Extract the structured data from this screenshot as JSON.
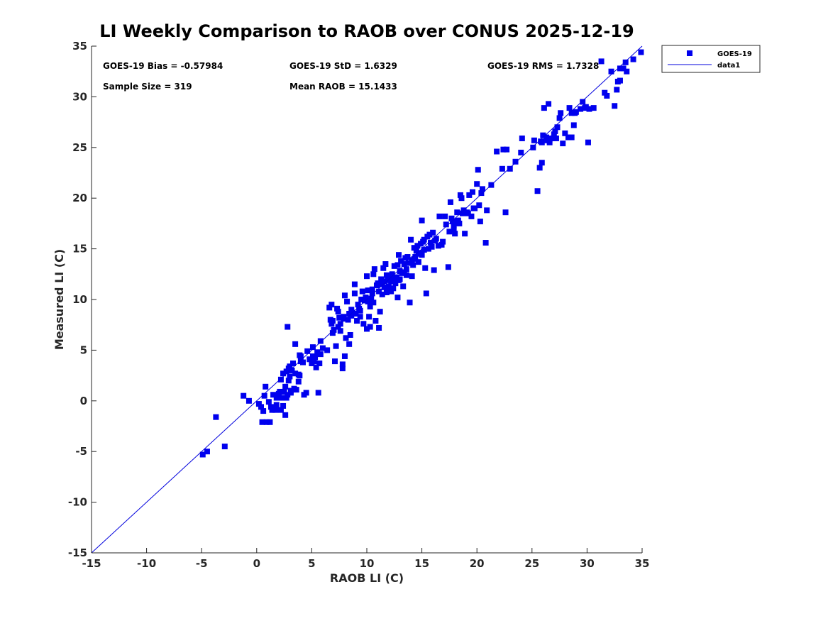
{
  "chart_data": {
    "type": "scatter",
    "title": "LI Weekly Comparison to RAOB over CONUS 2025-12-19",
    "xlabel": "RAOB LI (C)",
    "ylabel": "Measured LI (C)",
    "xlim": [
      -15,
      35
    ],
    "ylim": [
      -15,
      35
    ],
    "xticks": [
      "-15",
      "-10",
      "-5",
      "0",
      "5",
      "10",
      "15",
      "20",
      "25",
      "30",
      "35"
    ],
    "yticks": [
      "-15",
      "-10",
      "-5",
      "0",
      "5",
      "10",
      "15",
      "20",
      "25",
      "30",
      "35"
    ],
    "marker_color": "#0000ee",
    "line_color": "#0000dd",
    "legend": {
      "placement": "outside-top-right",
      "entries": [
        "GOES-19",
        "data1"
      ]
    },
    "stats": {
      "bias": "GOES-19 Bias = -0.57984",
      "std": "GOES-19 StD = 1.6329",
      "rms": "GOES-19 RMS = 1.7328",
      "sample": "Sample Size = 319",
      "mean": "Mean RAOB = 15.1433"
    },
    "series": [
      {
        "name": "GOES-19",
        "kind": "points",
        "points": [
          [
            -4.9,
            -5.3
          ],
          [
            -4.5,
            -5.0
          ],
          [
            -3.7,
            -1.6
          ],
          [
            -2.9,
            -4.5
          ],
          [
            -1.2,
            0.5
          ],
          [
            -0.7,
            0.0
          ],
          [
            0.2,
            -0.3
          ],
          [
            0.4,
            -0.6
          ],
          [
            0.5,
            -2.1
          ],
          [
            0.9,
            -2.1
          ],
          [
            0.8,
            1.4
          ],
          [
            0.7,
            0.5
          ],
          [
            1.2,
            -2.1
          ],
          [
            1.3,
            -0.6
          ],
          [
            1.4,
            -0.9
          ],
          [
            1.5,
            0.6
          ],
          [
            1.6,
            -0.8
          ],
          [
            1.8,
            -0.4
          ],
          [
            1.8,
            0.3
          ],
          [
            2.0,
            0.7
          ],
          [
            2.2,
            -0.9
          ],
          [
            2.3,
            0.3
          ],
          [
            2.4,
            -0.5
          ],
          [
            2.5,
            0.9
          ],
          [
            2.6,
            1.4
          ],
          [
            2.7,
            0.3
          ],
          [
            2.6,
            -1.4
          ],
          [
            2.7,
            2.9
          ],
          [
            2.8,
            7.3
          ],
          [
            2.8,
            0.6
          ],
          [
            2.9,
            3.2
          ],
          [
            3.0,
            2.4
          ],
          [
            3.1,
            1.0
          ],
          [
            3.1,
            0.8
          ],
          [
            3.3,
            3.7
          ],
          [
            3.4,
            1.2
          ],
          [
            3.5,
            5.6
          ],
          [
            3.5,
            2.7
          ],
          [
            3.6,
            1.1
          ],
          [
            3.8,
            2.6
          ],
          [
            3.8,
            1.9
          ],
          [
            3.9,
            4.5
          ],
          [
            4.0,
            3.9
          ],
          [
            4.2,
            3.8
          ],
          [
            4.3,
            0.6
          ],
          [
            4.5,
            0.8
          ],
          [
            4.8,
            4.1
          ],
          [
            5.0,
            3.7
          ],
          [
            5.1,
            5.3
          ],
          [
            5.2,
            3.9
          ],
          [
            5.3,
            4.3
          ],
          [
            5.4,
            3.3
          ],
          [
            5.5,
            4.8
          ],
          [
            5.6,
            0.8
          ],
          [
            5.7,
            3.7
          ],
          [
            5.8,
            4.6
          ],
          [
            6.4,
            5.0
          ],
          [
            6.6,
            9.2
          ],
          [
            6.7,
            8.0
          ],
          [
            6.8,
            7.6
          ],
          [
            6.9,
            6.7
          ],
          [
            7.0,
            7.0
          ],
          [
            7.1,
            3.9
          ],
          [
            7.2,
            5.4
          ],
          [
            7.3,
            9.1
          ],
          [
            7.4,
            7.3
          ],
          [
            7.5,
            8.2
          ],
          [
            7.6,
            6.9
          ],
          [
            7.8,
            3.2
          ],
          [
            7.8,
            3.6
          ],
          [
            7.9,
            8.3
          ],
          [
            8.0,
            4.4
          ],
          [
            8.1,
            6.2
          ],
          [
            8.2,
            9.8
          ],
          [
            8.3,
            8.0
          ],
          [
            8.4,
            5.6
          ],
          [
            8.5,
            6.5
          ],
          [
            8.6,
            8.4
          ],
          [
            8.7,
            8.7
          ],
          [
            8.9,
            11.5
          ],
          [
            9.0,
            8.6
          ],
          [
            9.1,
            7.9
          ],
          [
            9.3,
            9.1
          ],
          [
            9.4,
            8.9
          ],
          [
            9.5,
            10.0
          ],
          [
            9.7,
            7.6
          ],
          [
            9.8,
            9.9
          ],
          [
            10.0,
            7.1
          ],
          [
            10.0,
            12.3
          ],
          [
            10.1,
            10.9
          ],
          [
            10.2,
            8.3
          ],
          [
            10.3,
            7.3
          ],
          [
            10.4,
            10.1
          ],
          [
            10.5,
            11.0
          ],
          [
            10.6,
            9.7
          ],
          [
            10.7,
            13.0
          ],
          [
            10.8,
            7.9
          ],
          [
            11.0,
            11.6
          ],
          [
            11.1,
            7.2
          ],
          [
            11.2,
            8.8
          ],
          [
            11.3,
            12.0
          ],
          [
            11.4,
            10.5
          ],
          [
            11.5,
            13.1
          ],
          [
            11.6,
            11.2
          ],
          [
            11.7,
            13.5
          ],
          [
            11.8,
            10.7
          ],
          [
            11.9,
            12.2
          ],
          [
            12.0,
            11.3
          ],
          [
            12.1,
            10.9
          ],
          [
            12.2,
            11.8
          ],
          [
            12.3,
            12.5
          ],
          [
            12.4,
            11.1
          ],
          [
            12.5,
            13.3
          ],
          [
            12.6,
            11.6
          ],
          [
            12.7,
            12.2
          ],
          [
            12.8,
            10.2
          ],
          [
            12.9,
            14.4
          ],
          [
            13.0,
            12.0
          ],
          [
            13.1,
            13.8
          ],
          [
            13.3,
            11.3
          ],
          [
            13.4,
            12.7
          ],
          [
            13.5,
            14.1
          ],
          [
            13.6,
            12.4
          ],
          [
            13.8,
            13.6
          ],
          [
            13.9,
            9.7
          ],
          [
            14.0,
            15.9
          ],
          [
            14.1,
            12.3
          ],
          [
            14.2,
            13.4
          ],
          [
            14.3,
            14.0
          ],
          [
            14.5,
            14.8
          ],
          [
            14.6,
            15.3
          ],
          [
            14.7,
            13.7
          ],
          [
            14.8,
            14.6
          ],
          [
            15.0,
            17.8
          ],
          [
            15.1,
            15.7
          ],
          [
            15.2,
            14.9
          ],
          [
            15.3,
            13.1
          ],
          [
            15.4,
            10.6
          ],
          [
            15.5,
            16.2
          ],
          [
            15.6,
            15.0
          ],
          [
            15.8,
            15.6
          ],
          [
            16.0,
            16.6
          ],
          [
            16.1,
            12.9
          ],
          [
            16.5,
            15.3
          ],
          [
            16.6,
            18.2
          ],
          [
            16.8,
            15.4
          ],
          [
            17.4,
            13.2
          ],
          [
            17.5,
            16.7
          ],
          [
            17.6,
            19.6
          ],
          [
            17.7,
            18.0
          ],
          [
            17.8,
            17.7
          ],
          [
            17.9,
            16.9
          ],
          [
            18.0,
            16.5
          ],
          [
            18.2,
            18.6
          ],
          [
            18.4,
            17.5
          ],
          [
            18.5,
            20.3
          ],
          [
            18.6,
            20.0
          ],
          [
            18.9,
            16.5
          ],
          [
            19.1,
            18.6
          ],
          [
            19.3,
            20.3
          ],
          [
            19.5,
            18.2
          ],
          [
            19.6,
            20.6
          ],
          [
            19.8,
            19.0
          ],
          [
            20.0,
            21.4
          ],
          [
            20.1,
            22.8
          ],
          [
            20.2,
            19.3
          ],
          [
            20.3,
            17.7
          ],
          [
            20.5,
            20.9
          ],
          [
            20.8,
            15.6
          ],
          [
            20.9,
            18.8
          ],
          [
            21.3,
            21.3
          ],
          [
            21.8,
            24.6
          ],
          [
            22.3,
            22.9
          ],
          [
            22.6,
            18.6
          ],
          [
            22.7,
            24.8
          ],
          [
            23.5,
            23.6
          ],
          [
            24.1,
            25.9
          ],
          [
            25.1,
            25.0
          ],
          [
            25.2,
            25.7
          ],
          [
            25.5,
            20.7
          ],
          [
            25.7,
            23.0
          ],
          [
            25.8,
            25.6
          ],
          [
            25.9,
            23.5
          ],
          [
            26.0,
            26.2
          ],
          [
            26.1,
            28.9
          ],
          [
            26.3,
            26.0
          ],
          [
            26.5,
            29.3
          ],
          [
            26.6,
            25.5
          ],
          [
            26.8,
            25.9
          ],
          [
            27.0,
            26.3
          ],
          [
            27.2,
            25.9
          ],
          [
            27.5,
            27.9
          ],
          [
            27.8,
            25.4
          ],
          [
            28.0,
            26.4
          ],
          [
            28.3,
            26.0
          ],
          [
            28.4,
            28.9
          ],
          [
            28.6,
            28.4
          ],
          [
            28.8,
            27.2
          ],
          [
            28.9,
            28.4
          ],
          [
            29.4,
            28.8
          ],
          [
            29.6,
            29.5
          ],
          [
            29.8,
            28.9
          ],
          [
            30.1,
            25.5
          ],
          [
            30.2,
            28.8
          ],
          [
            31.3,
            33.5
          ],
          [
            31.6,
            30.4
          ],
          [
            31.8,
            30.1
          ],
          [
            32.2,
            32.5
          ],
          [
            32.5,
            29.1
          ],
          [
            32.7,
            30.7
          ],
          [
            32.8,
            31.5
          ],
          [
            33.0,
            31.6
          ],
          [
            33.0,
            32.8
          ],
          [
            33.3,
            32.8
          ],
          [
            33.5,
            33.4
          ],
          [
            33.6,
            32.5
          ],
          [
            34.2,
            33.7
          ],
          [
            34.9,
            34.4
          ],
          [
            2.4,
            2.7
          ],
          [
            3.2,
            3.0
          ],
          [
            4.6,
            4.9
          ],
          [
            6.0,
            5.2
          ],
          [
            6.9,
            7.9
          ],
          [
            7.6,
            7.6
          ],
          [
            8.4,
            8.6
          ],
          [
            9.2,
            9.5
          ],
          [
            9.9,
            10.2
          ],
          [
            10.3,
            9.3
          ],
          [
            10.9,
            11.4
          ],
          [
            11.6,
            11.8
          ],
          [
            12.3,
            12.1
          ],
          [
            13.0,
            12.8
          ],
          [
            13.7,
            14.2
          ],
          [
            14.4,
            14.2
          ],
          [
            15.2,
            15.9
          ],
          [
            15.9,
            15.2
          ],
          [
            17.2,
            17.4
          ],
          [
            18.7,
            18.5
          ],
          [
            2.0,
            0.4
          ],
          [
            1.1,
            -0.1
          ],
          [
            3.9,
            2.5
          ],
          [
            5.8,
            5.9
          ],
          [
            7.4,
            8.8
          ],
          [
            9.6,
            10.8
          ],
          [
            10.6,
            12.5
          ],
          [
            11.4,
            11.5
          ],
          [
            12.2,
            10.8
          ],
          [
            12.9,
            11.9
          ],
          [
            13.6,
            13.0
          ],
          [
            14.3,
            15.1
          ],
          [
            15.0,
            14.4
          ],
          [
            16.3,
            16.0
          ],
          [
            17.1,
            18.2
          ],
          [
            18.3,
            17.8
          ],
          [
            19.7,
            19.0
          ],
          [
            22.4,
            24.8
          ],
          [
            24.0,
            24.5
          ],
          [
            26.4,
            25.7
          ],
          [
            27.3,
            27.0
          ],
          [
            29.0,
            28.5
          ],
          [
            2.1,
            0.9
          ],
          [
            3.0,
            3.4
          ],
          [
            4.0,
            4.4
          ],
          [
            5.1,
            4.4
          ],
          [
            6.8,
            9.5
          ],
          [
            8.0,
            10.4
          ],
          [
            8.9,
            10.6
          ],
          [
            10.5,
            10.6
          ],
          [
            11.8,
            12.4
          ],
          [
            12.6,
            11.9
          ],
          [
            13.4,
            13.5
          ],
          [
            14.9,
            15.5
          ],
          [
            16.9,
            15.7
          ],
          [
            18.8,
            18.8
          ],
          [
            20.4,
            20.5
          ],
          [
            25.9,
            25.5
          ],
          [
            27.1,
            26.6
          ],
          [
            1.7,
            -0.9
          ],
          [
            2.9,
            2.0
          ],
          [
            7.9,
            8.1
          ],
          [
            9.4,
            8.3
          ],
          [
            11.1,
            10.8
          ],
          [
            12.0,
            11.9
          ],
          [
            13.2,
            12.6
          ],
          [
            14.7,
            14.5
          ],
          [
            16.2,
            15.8
          ],
          [
            19.2,
            18.5
          ],
          [
            26.6,
            25.8
          ],
          [
            28.6,
            26.0
          ],
          [
            0.6,
            -1.0
          ],
          [
            2.2,
            2.1
          ],
          [
            8.6,
            9.0
          ],
          [
            10.1,
            9.8
          ],
          [
            11.9,
            11.0
          ],
          [
            12.8,
            13.4
          ],
          [
            14.1,
            13.9
          ],
          [
            15.7,
            16.4
          ],
          [
            17.9,
            17.3
          ],
          [
            23.0,
            22.9
          ],
          [
            27.6,
            28.4
          ],
          [
            29.9,
            29.0
          ],
          [
            30.6,
            28.9
          ]
        ]
      },
      {
        "name": "data1",
        "kind": "line",
        "points": [
          [
            -15,
            -15
          ],
          [
            35,
            35
          ]
        ]
      }
    ]
  }
}
